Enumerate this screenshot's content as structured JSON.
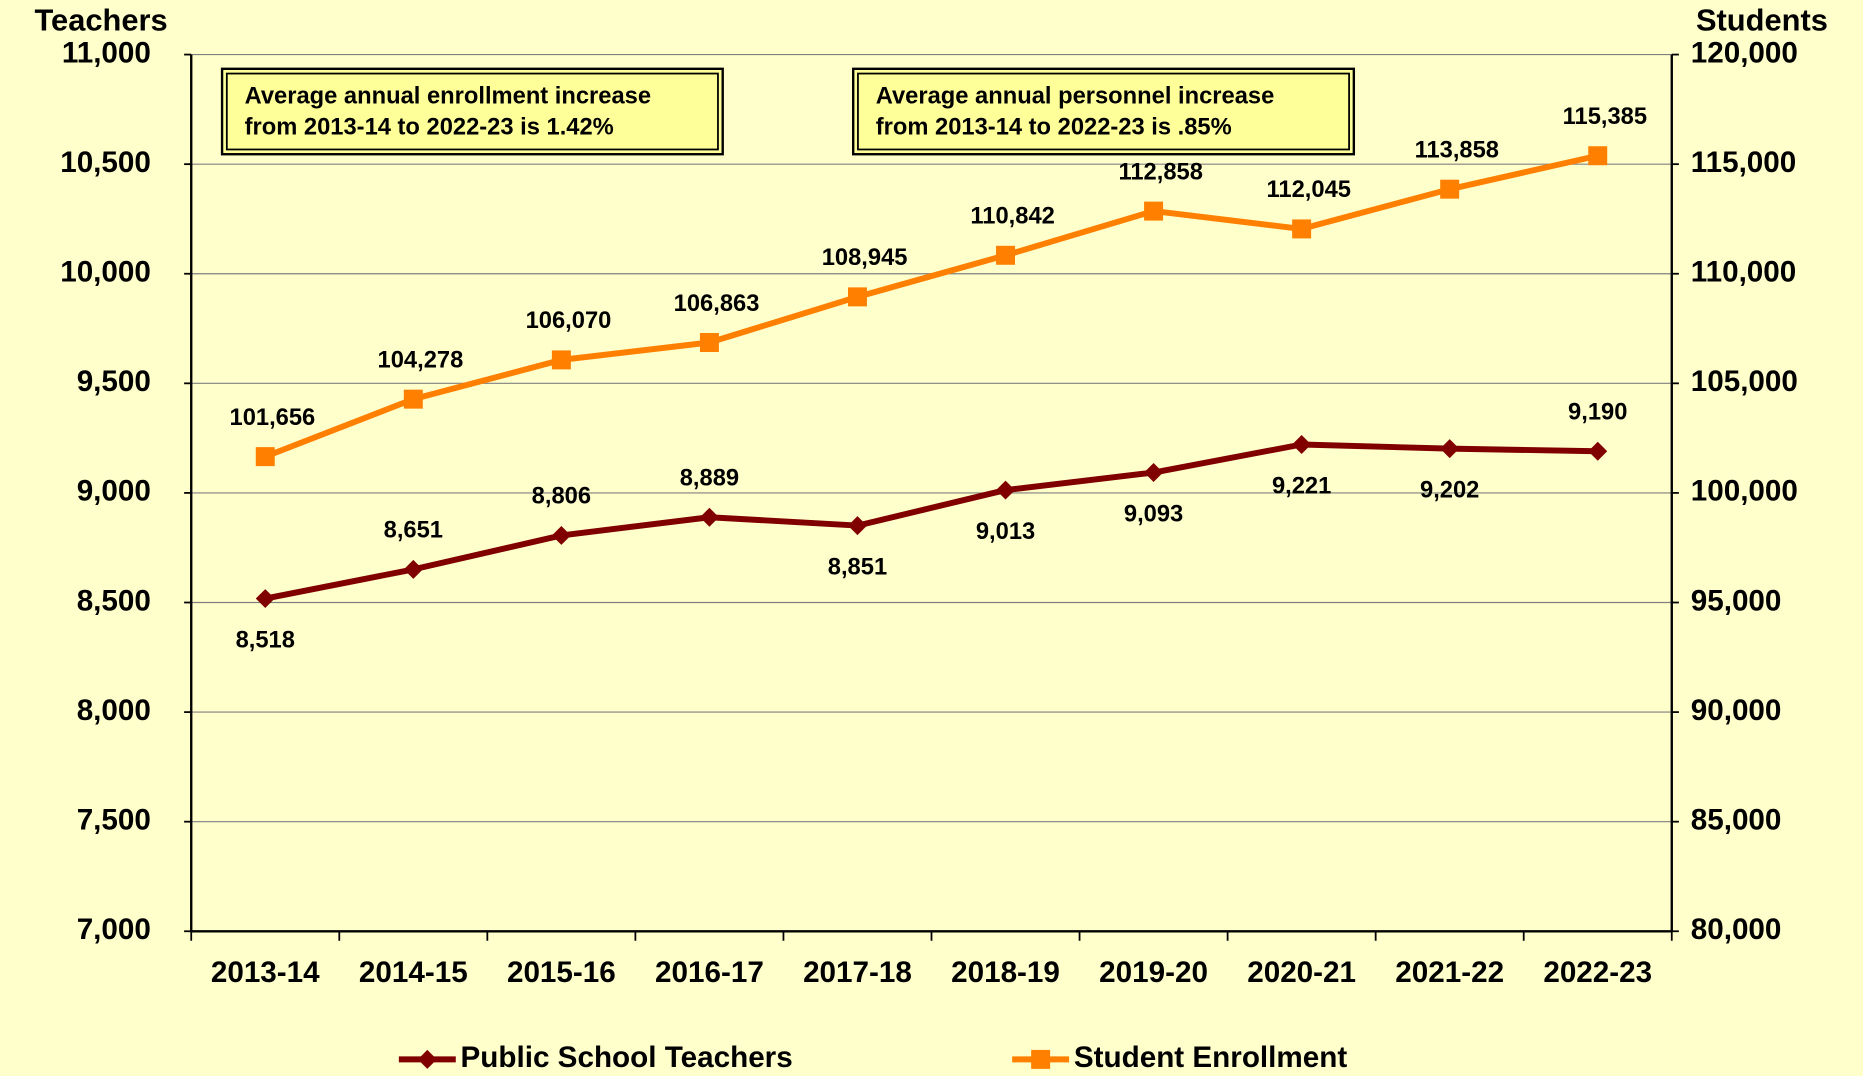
{
  "chart_data": {
    "type": "line",
    "y_axis_label": "Teachers",
    "y2_axis_label": "Students",
    "categories": [
      "2013-14",
      "2014-15",
      "2015-16",
      "2016-17",
      "2017-18",
      "2018-19",
      "2019-20",
      "2020-21",
      "2021-22",
      "2022-23"
    ],
    "series": [
      {
        "name": "Public School Teachers",
        "color": "#800000",
        "marker": "diamond",
        "values": [
          8518,
          8651,
          8806,
          8889,
          8851,
          9013,
          9093,
          9221,
          9202,
          9190
        ],
        "value_labels": [
          "8,518",
          "8,651",
          "8,806",
          "8,889",
          "8,851",
          "9,013",
          "9,093",
          "9,221",
          "9,202",
          "9,190"
        ]
      },
      {
        "name": "Student Enrollment",
        "color": "#ff8000",
        "marker": "square",
        "axis": "y2",
        "values": [
          101656,
          104278,
          106070,
          106863,
          108945,
          110842,
          112858,
          112045,
          113858,
          115385
        ],
        "value_labels": [
          "101,656",
          "104,278",
          "106,070",
          "106,863",
          "108,945",
          "110,842",
          "112,858",
          "112,045",
          "113,858",
          "115,385"
        ]
      }
    ],
    "ylim": [
      7000,
      11000
    ],
    "yticks": [
      {
        "value": 7000,
        "label": "7,000"
      },
      {
        "value": 7500,
        "label": "7,500"
      },
      {
        "value": 8000,
        "label": "8,000"
      },
      {
        "value": 8500,
        "label": "8,500"
      },
      {
        "value": 9000,
        "label": "9,000"
      },
      {
        "value": 9500,
        "label": "9,500"
      },
      {
        "value": 10000,
        "label": "10,000"
      },
      {
        "value": 10500,
        "label": "10,500"
      },
      {
        "value": 11000,
        "label": "11,000"
      }
    ],
    "y2lim": [
      80000,
      120000
    ],
    "y2ticks": [
      {
        "value": 80000,
        "label": "80,000"
      },
      {
        "value": 85000,
        "label": "85,000"
      },
      {
        "value": 90000,
        "label": "90,000"
      },
      {
        "value": 95000,
        "label": "95,000"
      },
      {
        "value": 100000,
        "label": "100,000"
      },
      {
        "value": 105000,
        "label": "105,000"
      },
      {
        "value": 110000,
        "label": "110,000"
      },
      {
        "value": 115000,
        "label": "115,000"
      },
      {
        "value": 120000,
        "label": "120,000"
      }
    ],
    "grid": true,
    "legend": "bottom",
    "annotations": [
      {
        "lines": [
          "Average annual enrollment increase",
          "from 2013-14 to 2022-23 is 1.42%"
        ]
      },
      {
        "lines": [
          "Average annual personnel increase",
          "from 2013-14 to 2022-23 is .85%"
        ]
      }
    ]
  }
}
